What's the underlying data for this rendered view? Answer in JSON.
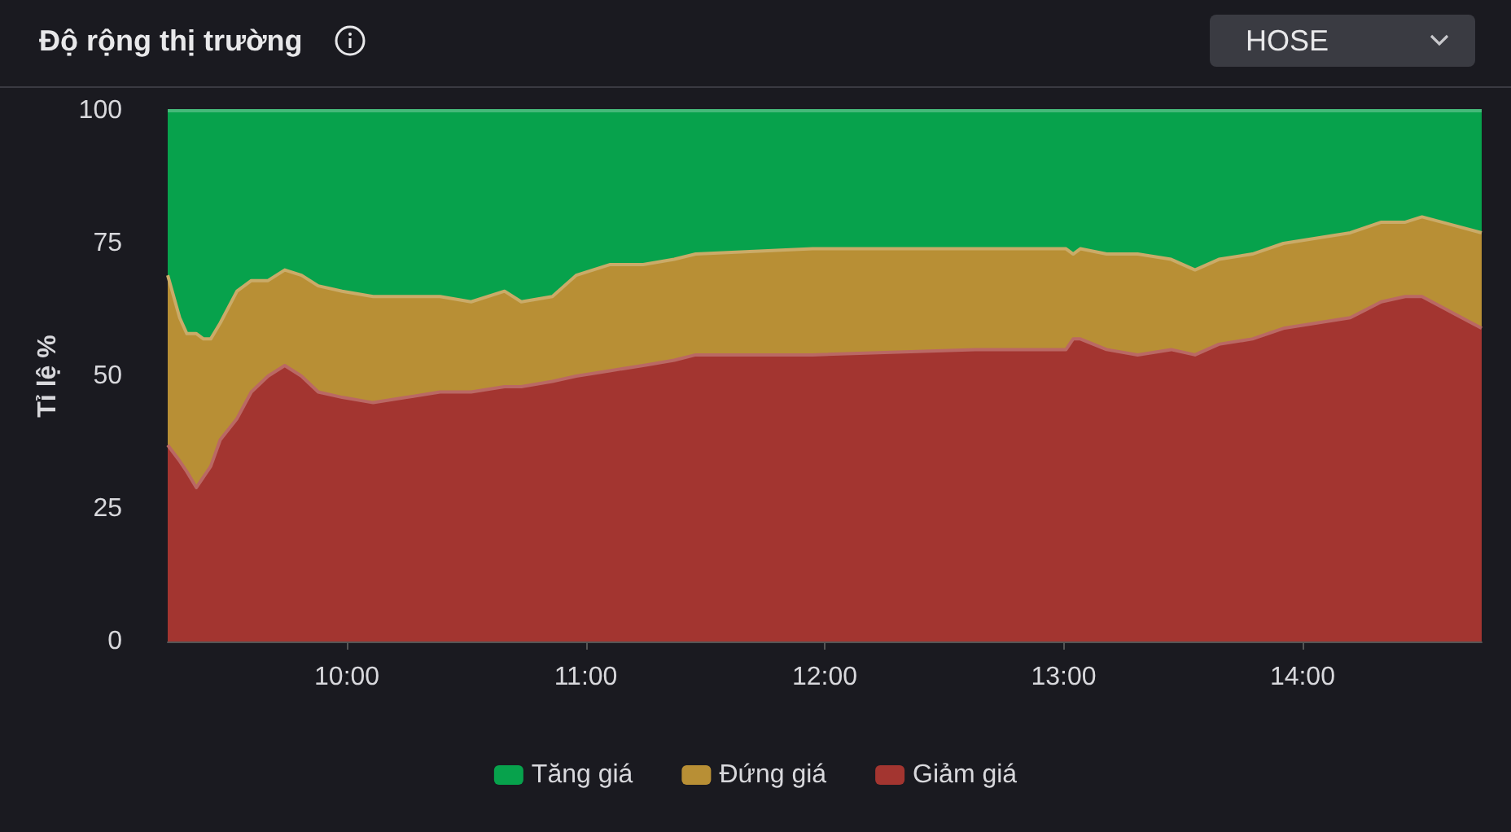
{
  "chart_data": {
    "type": "area",
    "title": "Độ rộng thị trường",
    "ylabel": "Tỉ lệ %",
    "annotations": [
      "HOSE"
    ],
    "stacked": true,
    "legend": "bottom",
    "marker": "none",
    "x": [
      9.25,
      9.3,
      9.33,
      9.37,
      9.4,
      9.43,
      9.47,
      9.54,
      9.6,
      9.67,
      9.74,
      9.81,
      9.88,
      9.98,
      10.11,
      10.25,
      10.39,
      10.52,
      10.66,
      10.73,
      10.86,
      10.96,
      11.1,
      11.24,
      11.37,
      11.46,
      11.95,
      12.63,
      13.01,
      13.04,
      13.07,
      13.18,
      13.31,
      13.45,
      13.55,
      13.65,
      13.79,
      13.92,
      14.06,
      14.2,
      14.33,
      14.43,
      14.5,
      14.75
    ],
    "xlim": [
      9.25,
      14.75
    ],
    "xticks": [
      {
        "value": 10,
        "label": "10:00"
      },
      {
        "value": 11,
        "label": "11:00"
      },
      {
        "value": 12,
        "label": "12:00"
      },
      {
        "value": 13,
        "label": "13:00"
      },
      {
        "value": 14,
        "label": "14:00"
      }
    ],
    "ylim": [
      0,
      100
    ],
    "yticks": [
      0,
      25,
      50,
      75,
      100
    ],
    "series": [
      {
        "name": "Giảm giá",
        "color": "#a33530",
        "values": [
          37,
          34,
          32,
          29,
          31,
          33,
          38,
          42,
          47,
          50,
          52,
          50,
          47,
          46,
          45,
          46,
          47,
          47,
          48,
          48,
          49,
          50,
          51,
          52,
          53,
          54,
          54,
          55,
          55,
          57,
          57,
          55,
          54,
          55,
          54,
          56,
          57,
          59,
          60,
          61,
          64,
          65,
          65,
          59
        ]
      },
      {
        "name": "Đứng giá",
        "color": "#b88f35",
        "values": [
          32,
          27,
          26,
          29,
          26,
          24,
          22,
          24,
          21,
          18,
          18,
          19,
          20,
          20,
          20,
          19,
          18,
          17,
          18,
          16,
          16,
          19,
          20,
          19,
          19,
          19,
          20,
          19,
          19,
          16,
          17,
          18,
          19,
          17,
          16,
          16,
          16,
          16,
          16,
          16,
          15,
          14,
          15,
          18
        ]
      },
      {
        "name": "Tăng giá",
        "color": "#07a24c",
        "values": [
          31,
          39,
          42,
          42,
          43,
          43,
          40,
          34,
          32,
          32,
          30,
          31,
          33,
          34,
          35,
          35,
          35,
          36,
          34,
          36,
          35,
          31,
          29,
          29,
          28,
          27,
          26,
          26,
          26,
          27,
          26,
          27,
          27,
          28,
          30,
          28,
          27,
          25,
          24,
          23,
          21,
          21,
          20,
          23
        ]
      }
    ]
  }
}
